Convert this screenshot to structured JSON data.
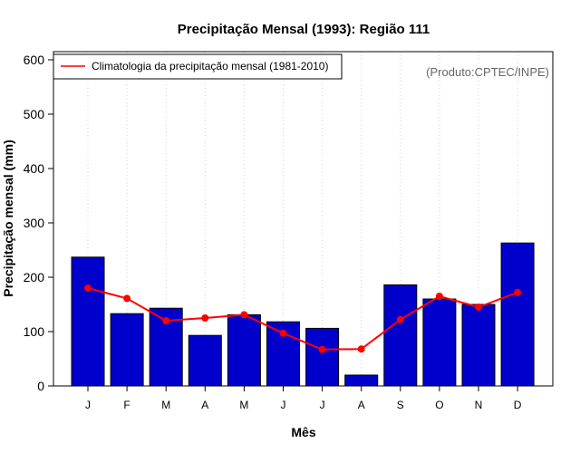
{
  "chart_data": {
    "type": "bar",
    "title": "Precipitação Mensal (1993): Região 111",
    "xlabel": "Mês",
    "ylabel": "Precipitação mensal (mm)",
    "ylim": [
      0,
      600
    ],
    "yticks": [
      0,
      100,
      200,
      300,
      400,
      500,
      600
    ],
    "grid": "vertical dotted",
    "categories": [
      "J",
      "F",
      "M",
      "A",
      "M",
      "J",
      "J",
      "A",
      "S",
      "O",
      "N",
      "D"
    ],
    "series": [
      {
        "name": "Precipitação mensal (1993)",
        "type": "bar",
        "color": "#0000CC",
        "values": [
          237,
          133,
          143,
          93,
          131,
          118,
          106,
          20,
          186,
          160,
          150,
          263
        ]
      },
      {
        "name": "Climatologia da precipitação mensal (1981-2010)",
        "type": "line",
        "color": "#FF0000",
        "values": [
          180,
          161,
          120,
          125,
          131,
          97,
          67,
          68,
          122,
          165,
          145,
          172
        ]
      }
    ],
    "legend": {
      "position": "top-left",
      "entries": [
        "Climatologia da precipitação mensal (1981-2010)"
      ]
    },
    "annotation": "(Produto:CPTEC/INPE)"
  }
}
